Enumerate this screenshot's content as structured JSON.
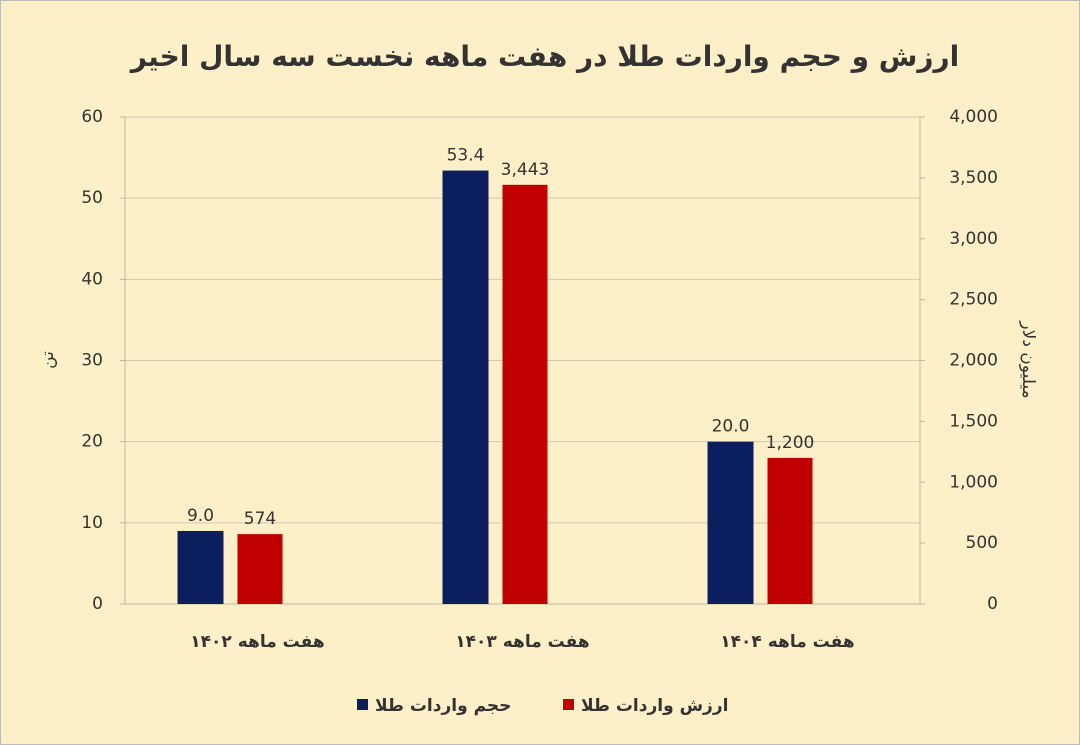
{
  "chart_data": {
    "type": "bar",
    "title": "ارزش و حجم واردات طلا در هفت ماهه نخست سه سال اخیر",
    "y_label": "تن",
    "y2_label": "میلیون دلار",
    "categories": [
      "هفت ماهه ۱۴۰۲",
      "هفت ماهه ۱۴۰۳",
      "هفت ماهه ۱۴۰۴"
    ],
    "series": [
      {
        "name": "حجم واردات طلا",
        "color": "#0b1f5e",
        "values": [
          9.0,
          53.4,
          20.0
        ],
        "value_labels": [
          "9.0",
          "53.4",
          "20.0"
        ]
      },
      {
        "name": "ارزش واردات طلا",
        "color": "#c00000",
        "axis": "y2",
        "values": [
          574,
          3443,
          1200
        ],
        "value_labels": [
          "574",
          "3,443",
          "1,200"
        ]
      }
    ],
    "ylim": [
      0,
      60
    ],
    "yticks": [
      0,
      10,
      20,
      30,
      40,
      50,
      60
    ],
    "y2lim": [
      0,
      4000
    ],
    "y2ticks": [
      0,
      500,
      {
        "value": 1000,
        "label": "1,000"
      },
      {
        "value": 1500,
        "label": "1,500"
      },
      {
        "value": 2000,
        "label": "2,000"
      },
      {
        "value": 2500,
        "label": "2,500"
      },
      {
        "value": 3000,
        "label": "3,000"
      },
      {
        "value": 3500,
        "label": "3,500"
      },
      {
        "value": 4000,
        "label": "4,000"
      }
    ],
    "grid": true,
    "legend": "bottom"
  }
}
